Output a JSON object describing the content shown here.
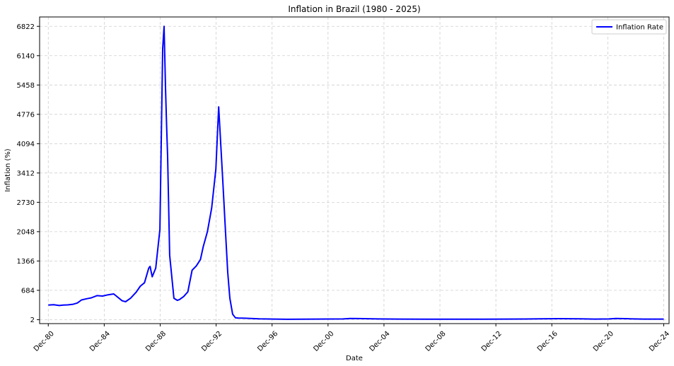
{
  "chart_data": {
    "type": "line",
    "title": "Inflation in Brazil (1980 - 2025)",
    "xlabel": "Date",
    "ylabel": "Inflation (%)",
    "ylim": [
      -90,
      7040
    ],
    "xlim": [
      1980.3,
      2025.3
    ],
    "yticks": [
      2,
      684,
      1366,
      2048,
      2730,
      3412,
      4094,
      4776,
      5458,
      6140,
      6822
    ],
    "xticks": [
      {
        "label": "Dec-80",
        "pos": 1980.92
      },
      {
        "label": "Dec-84",
        "pos": 1984.92
      },
      {
        "label": "Dec-88",
        "pos": 1988.92
      },
      {
        "label": "Dec-92",
        "pos": 1992.92
      },
      {
        "label": "Dec-96",
        "pos": 1996.92
      },
      {
        "label": "Dec-00",
        "pos": 2000.92
      },
      {
        "label": "Dec-04",
        "pos": 2004.92
      },
      {
        "label": "Dec-08",
        "pos": 2008.92
      },
      {
        "label": "Dec-12",
        "pos": 2012.92
      },
      {
        "label": "Dec-16",
        "pos": 2016.92
      },
      {
        "label": "Dec-20",
        "pos": 2020.92
      },
      {
        "label": "Dec-24",
        "pos": 2024.92
      }
    ],
    "grid": true,
    "legend_position": "top-right",
    "series": [
      {
        "name": "Inflation Rate",
        "color": "#0000ff",
        "x": [
          1980.92,
          1981.3,
          1981.7,
          1982.0,
          1982.3,
          1982.7,
          1983.0,
          1983.3,
          1983.7,
          1984.0,
          1984.4,
          1984.8,
          1985.2,
          1985.6,
          1985.9,
          1986.2,
          1986.45,
          1986.8,
          1987.2,
          1987.5,
          1987.8,
          1988.1,
          1988.2,
          1988.35,
          1988.6,
          1988.9,
          1989.1,
          1989.2,
          1989.3,
          1989.38,
          1989.45,
          1989.6,
          1989.9,
          1990.15,
          1990.3,
          1990.6,
          1990.9,
          1991.2,
          1991.5,
          1991.8,
          1992.0,
          1992.3,
          1992.6,
          1992.9,
          1993.1,
          1993.4,
          1993.6,
          1993.75,
          1993.9,
          1994.1,
          1994.3,
          1994.5,
          1995.0,
          1996.0,
          1998.0,
          2000.0,
          2002.0,
          2002.5,
          2003.5,
          2004.5,
          2006.0,
          2008.0,
          2010.0,
          2012.0,
          2015.0,
          2016.0,
          2017.5,
          2019.0,
          2020.0,
          2021.0,
          2021.5,
          2022.5,
          2023.5,
          2024.92
        ],
        "values": [
          340,
          350,
          330,
          340,
          345,
          360,
          390,
          460,
          490,
          510,
          560,
          550,
          580,
          600,
          520,
          440,
          420,
          500,
          640,
          780,
          860,
          1200,
          1240,
          1000,
          1200,
          2100,
          6300,
          6822,
          5400,
          4500,
          3800,
          1500,
          500,
          450,
          470,
          540,
          650,
          1150,
          1250,
          1400,
          1700,
          2050,
          2600,
          3500,
          4950,
          3200,
          2000,
          1100,
          500,
          130,
          45,
          40,
          35,
          20,
          10,
          15,
          18,
          30,
          25,
          18,
          15,
          14,
          13,
          14,
          16,
          20,
          25,
          20,
          15,
          18,
          30,
          22,
          15,
          15
        ]
      }
    ]
  }
}
